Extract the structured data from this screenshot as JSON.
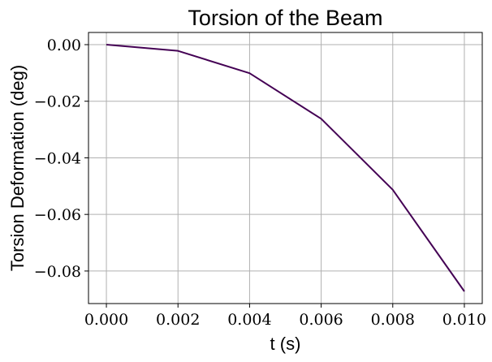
{
  "chart_data": {
    "type": "line",
    "title": "Torsion of the Beam",
    "xlabel": "t (s)",
    "ylabel": "Torsion Deformation (deg)",
    "xlim": [
      -0.0005,
      0.0105
    ],
    "ylim": [
      -0.0915,
      0.0043
    ],
    "xticks": [
      0.0,
      0.002,
      0.004,
      0.006,
      0.008,
      0.01
    ],
    "xtick_labels": [
      "0.000",
      "0.002",
      "0.004",
      "0.006",
      "0.008",
      "0.010"
    ],
    "yticks": [
      0.0,
      -0.02,
      -0.04,
      -0.06,
      -0.08
    ],
    "ytick_labels": [
      "0.00",
      "−0.02",
      "−0.04",
      "−0.06",
      "−0.08"
    ],
    "grid": true,
    "series": [
      {
        "color": "#440154",
        "x": [
          0.0,
          0.002,
          0.004,
          0.006,
          0.008,
          0.01
        ],
        "y": [
          0.0,
          -0.0022,
          -0.0101,
          -0.0262,
          -0.0513,
          -0.0872
        ]
      }
    ]
  }
}
